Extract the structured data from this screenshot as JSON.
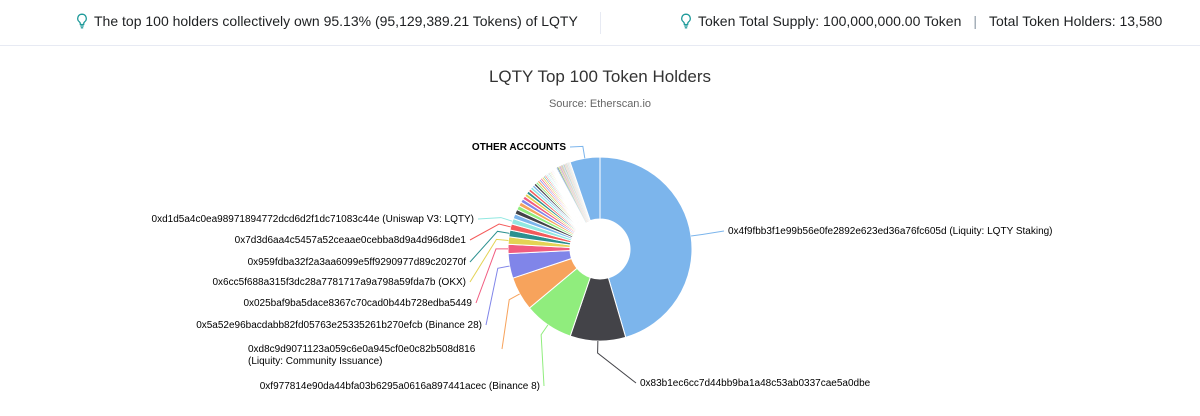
{
  "stats": {
    "top100_text": "The top 100 holders collectively own 95.13% (95,129,389.21 Tokens) of LQTY",
    "total_supply": "Token Total Supply: 100,000,000.00 Token",
    "total_holders": "Total Token Holders: 13,580",
    "icon": "lightbulb-icon",
    "icon_color": "#219b9b"
  },
  "chart_data": {
    "type": "pie",
    "title": "LQTY Top 100 Token Holders",
    "subtitle": "Source: Etherscan.io",
    "donut": true,
    "slices": [
      {
        "label": "0x4f9fbb3f1e99b56e0fe2892e623ed36a76fc605d (Liquity: LQTY Staking)",
        "value": 42.0,
        "color": "#7cb5ec"
      },
      {
        "label": "0x83b1ec6cc7d44bb9ba1a48c53ab0337cae5a0dbe",
        "value": 9.0,
        "color": "#434348"
      },
      {
        "label": "0xf977814e90da44bfa03b6295a0616a897441acec (Binance 8)",
        "value": 8.0,
        "color": "#90ed7d"
      },
      {
        "label": "0xd8c9d9071123a059c6e0a945cf0e0c82b508d816 (Liquity: Community Issuance)",
        "value": 5.5,
        "color": "#f7a35c"
      },
      {
        "label": "0x5a52e96bacdabb82fd05763e25335261b270efcb (Binance 28)",
        "value": 4.0,
        "color": "#8085e9"
      },
      {
        "label": "0x025baf9ba5dace8367c70cad0b44b728edba5449",
        "value": 1.5,
        "color": "#f15c80"
      },
      {
        "label": "0x6cc5f688a315f3dc28a7781717a9a798a59fda7b (OKX)",
        "value": 1.2,
        "color": "#e4d354"
      },
      {
        "label": "0x959fdba32f2a3aa6099e5ff9290977d89c20270f",
        "value": 1.1,
        "color": "#2b908f"
      },
      {
        "label": "0x7d3d6aa4c5457a52ceaae0cebba8d9a4d96d8de1",
        "value": 1.0,
        "color": "#f45b5b"
      },
      {
        "label": "0xd1d5a4c0ea98971894772dcd6d2f1dc71083c44e (Uniswap V3: LQTY)",
        "value": 0.9,
        "color": "#91e8e1"
      },
      {
        "label": "",
        "value": 0.8,
        "color": "#7cb5ec"
      },
      {
        "label": "",
        "value": 0.75,
        "color": "#434348"
      },
      {
        "label": "",
        "value": 0.7,
        "color": "#90ed7d"
      },
      {
        "label": "",
        "value": 0.65,
        "color": "#f7a35c"
      },
      {
        "label": "",
        "value": 0.6,
        "color": "#8085e9"
      },
      {
        "label": "",
        "value": 0.55,
        "color": "#f15c80"
      },
      {
        "label": "",
        "value": 0.5,
        "color": "#e4d354"
      },
      {
        "label": "",
        "value": 0.5,
        "color": "#2b908f"
      },
      {
        "label": "",
        "value": 0.45,
        "color": "#f45b5b"
      },
      {
        "label": "",
        "value": 0.45,
        "color": "#91e8e1"
      },
      {
        "label": "",
        "value": 0.4,
        "color": "#7cb5ec"
      },
      {
        "label": "",
        "value": 0.4,
        "color": "#434348"
      },
      {
        "label": "",
        "value": 0.35,
        "color": "#90ed7d"
      },
      {
        "label": "",
        "value": 0.35,
        "color": "#f7a35c"
      },
      {
        "label": "",
        "value": 0.3,
        "color": "#8085e9"
      },
      {
        "label": "",
        "value": 0.3,
        "color": "#f15c80"
      },
      {
        "label": "",
        "value": 0.3,
        "color": "#e4d354"
      },
      {
        "label": "",
        "value": 0.25,
        "color": "#2b908f"
      },
      {
        "label": "",
        "value": 0.25,
        "color": "#f45b5b"
      },
      {
        "label": "",
        "value": 0.25,
        "color": "#91e8e1"
      },
      {
        "label": "",
        "value": 0.2,
        "color": "#7cb5ec"
      },
      {
        "label": "",
        "value": 0.2,
        "color": "#434348"
      },
      {
        "label": "",
        "value": 0.2,
        "color": "#90ed7d"
      },
      {
        "label": "",
        "value": 0.2,
        "color": "#f7a35c"
      },
      {
        "label": "",
        "value": 0.18,
        "color": "#8085e9"
      },
      {
        "label": "",
        "value": 0.18,
        "color": "#f15c80"
      },
      {
        "label": "",
        "value": 0.16,
        "color": "#e4d354"
      },
      {
        "label": "",
        "value": 0.16,
        "color": "#2b908f"
      },
      {
        "label": "",
        "value": 0.15,
        "color": "#f45b5b"
      },
      {
        "label": "",
        "value": 0.15,
        "color": "#91e8e1"
      },
      {
        "label": "",
        "value": 0.14,
        "color": "#7cb5ec"
      },
      {
        "label": "",
        "value": 0.13,
        "color": "#434348"
      },
      {
        "label": "",
        "value": 0.13,
        "color": "#90ed7d"
      },
      {
        "label": "",
        "value": 0.12,
        "color": "#f7a35c"
      },
      {
        "label": "",
        "value": 0.12,
        "color": "#8085e9"
      },
      {
        "label": "",
        "value": 0.11,
        "color": "#f15c80"
      },
      {
        "label": "",
        "value": 0.11,
        "color": "#e4d354"
      },
      {
        "label": "",
        "value": 0.1,
        "color": "#2b908f"
      },
      {
        "label": "",
        "value": 0.1,
        "color": "#f45b5b"
      },
      {
        "label": "",
        "value": 0.1,
        "color": "#91e8e1"
      },
      {
        "label": "",
        "value": 0.09,
        "color": "#7cb5ec"
      },
      {
        "label": "",
        "value": 0.09,
        "color": "#434348"
      },
      {
        "label": "",
        "value": 0.08,
        "color": "#90ed7d"
      },
      {
        "label": "",
        "value": 0.08,
        "color": "#f7a35c"
      },
      {
        "label": "",
        "value": 0.08,
        "color": "#8085e9"
      },
      {
        "label": "",
        "value": 0.07,
        "color": "#f15c80"
      },
      {
        "label": "",
        "value": 0.07,
        "color": "#e4d354"
      },
      {
        "label": "",
        "value": 0.07,
        "color": "#2b908f"
      },
      {
        "label": "",
        "value": 0.06,
        "color": "#f45b5b"
      },
      {
        "label": "",
        "value": 0.06,
        "color": "#91e8e1"
      },
      {
        "label": "",
        "value": 0.06,
        "color": "#7cb5ec"
      },
      {
        "label": "",
        "value": 0.05,
        "color": "#434348"
      },
      {
        "label": "",
        "value": 0.05,
        "color": "#90ed7d"
      },
      {
        "label": "",
        "value": 0.05,
        "color": "#f7a35c"
      },
      {
        "label": "",
        "value": 0.05,
        "color": "#8085e9"
      },
      {
        "label": "",
        "value": 0.04,
        "color": "#f15c80"
      },
      {
        "label": "",
        "value": 0.04,
        "color": "#e4d354"
      },
      {
        "label": "",
        "value": 0.04,
        "color": "#2b908f"
      },
      {
        "label": "",
        "value": 0.04,
        "color": "#f45b5b"
      },
      {
        "label": "",
        "value": 0.04,
        "color": "#91e8e1"
      },
      {
        "label": "OTHER ACCOUNTS",
        "value": 4.87,
        "color": "#7cb5ec"
      }
    ]
  }
}
